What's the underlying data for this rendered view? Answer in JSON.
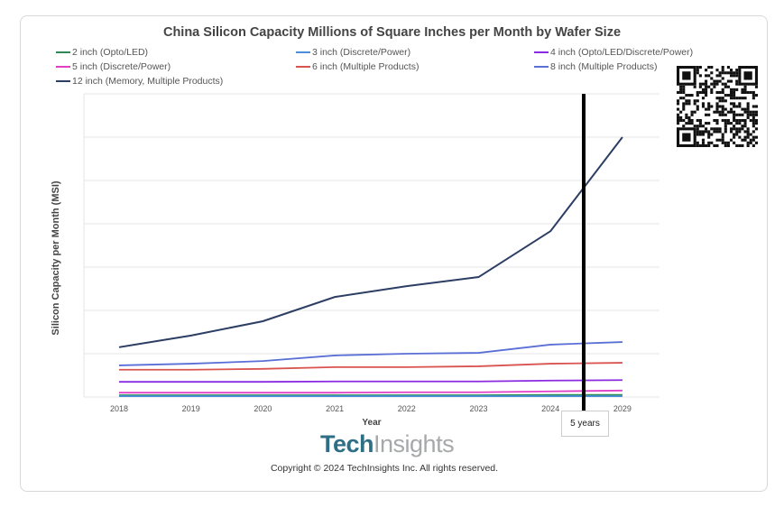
{
  "chart_data": {
    "type": "line",
    "title": "China Silicon Capacity Millions of Square Inches per Month by Wafer Size",
    "xlabel": "Year",
    "ylabel": "Silicon Capacity per Month (MSI)",
    "categories": [
      "2018",
      "2019",
      "2020",
      "2021",
      "2022",
      "2023",
      "2024",
      "2029"
    ],
    "ylim": [
      0,
      7
    ],
    "grid": true,
    "legend_position": "top",
    "series": [
      {
        "name": "2 inch (Opto/LED)",
        "color": "#2e8b57",
        "values": [
          0.04,
          0.04,
          0.04,
          0.04,
          0.04,
          0.04,
          0.05,
          0.05
        ]
      },
      {
        "name": "3 inch (Discrete/Power)",
        "color": "#4a90d9",
        "values": [
          0.02,
          0.02,
          0.02,
          0.02,
          0.02,
          0.02,
          0.02,
          0.02
        ]
      },
      {
        "name": "4 inch (Opto/LED/Discrete/Power)",
        "color": "#8a2be2",
        "values": [
          0.35,
          0.35,
          0.35,
          0.36,
          0.36,
          0.36,
          0.38,
          0.39
        ]
      },
      {
        "name": "5 inch (Discrete/Power)",
        "color": "#e040c8",
        "values": [
          0.1,
          0.1,
          0.1,
          0.1,
          0.11,
          0.11,
          0.13,
          0.15
        ]
      },
      {
        "name": "6 inch (Multiple Products)",
        "color": "#d9534f",
        "values": [
          0.63,
          0.63,
          0.65,
          0.69,
          0.69,
          0.71,
          0.77,
          0.79
        ]
      },
      {
        "name": "8 inch (Multiple Products)",
        "color": "#5a6fd6",
        "values": [
          0.73,
          0.77,
          0.83,
          0.96,
          1.0,
          1.02,
          1.21,
          1.27
        ]
      },
      {
        "name": "12 inch (Memory, Multiple Products)",
        "color": "#2c3e64",
        "values": [
          1.15,
          1.42,
          1.75,
          2.31,
          2.56,
          2.77,
          3.83,
          6.0
        ]
      }
    ],
    "annotation": "5 years"
  },
  "copyright": "Copyright © 2024 TechInsights Inc.  All rights reserved.",
  "logo": {
    "part1": "Tech",
    "part2": "Insights"
  }
}
